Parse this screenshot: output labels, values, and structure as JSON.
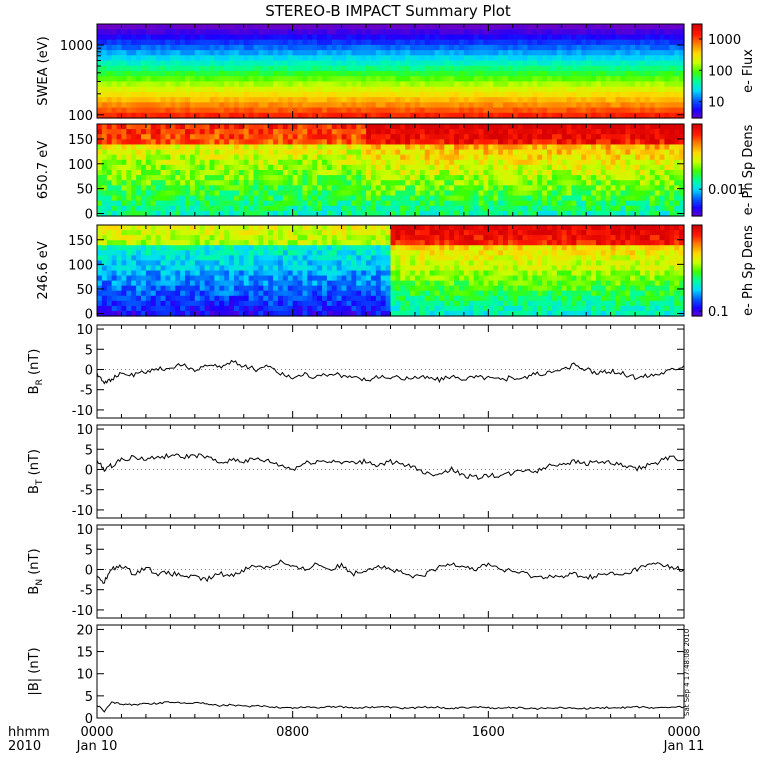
{
  "title": "STEREO-B IMPACT Summary Plot",
  "colors": {
    "frame": "#000000",
    "trace": "#000000",
    "colormap": [
      "#6a00c8",
      "#1a00ff",
      "#0060ff",
      "#00d8ff",
      "#00ff9a",
      "#3cff00",
      "#c8ff00",
      "#ffd800",
      "#ff8000",
      "#ff1a00",
      "#d80000"
    ]
  },
  "x_axis": {
    "row1_label": "hhmm",
    "row2_label": "2010",
    "ticks": [
      {
        "hour": 0,
        "label": "0000",
        "date": "Jan 10"
      },
      {
        "hour": 8,
        "label": "0800",
        "date": ""
      },
      {
        "hour": 16,
        "label": "1600",
        "date": ""
      },
      {
        "hour": 24,
        "label": "0000",
        "date": "Jan 11"
      }
    ],
    "range": [
      0,
      24
    ]
  },
  "timestamp": "Sat Sep  4 17:48:08 2010",
  "chart_data": [
    {
      "type": "heatmap",
      "ylabel": "SWEA (eV)",
      "yscale": "log",
      "ylim": [
        90,
        2000
      ],
      "yticks": [
        {
          "v": 100,
          "label": "100"
        },
        {
          "v": 1000,
          "label": "1000"
        }
      ],
      "colorbar": {
        "label": "e- Flux",
        "scale": "log",
        "range": [
          3,
          3000
        ],
        "ticks": [
          {
            "v": 10,
            "label": "10"
          },
          {
            "v": 100,
            "label": "100"
          },
          {
            "v": 1000,
            "label": "1000"
          }
        ]
      },
      "description_profile": "flux decreases with energy: high (red) near 100 eV, green near 500 eV, blue/purple above 1500 eV"
    },
    {
      "type": "heatmap",
      "ylabel": "650.7 eV",
      "ylim": [
        -5,
        180
      ],
      "yticks": [
        {
          "v": 0,
          "label": "0"
        },
        {
          "v": 50,
          "label": "50"
        },
        {
          "v": 100,
          "label": "100"
        },
        {
          "v": 150,
          "label": "150"
        }
      ],
      "colorbar": {
        "label": "e- Ph Sp Dens",
        "scale": "log",
        "range": [
          0.0002,
          0.05
        ],
        "ticks": [
          {
            "v": 0.001,
            "label": "0.001"
          }
        ]
      }
    },
    {
      "type": "heatmap",
      "ylabel": "246.6 eV",
      "ylim": [
        -5,
        180
      ],
      "yticks": [
        {
          "v": 0,
          "label": "0"
        },
        {
          "v": 50,
          "label": "50"
        },
        {
          "v": 100,
          "label": "100"
        },
        {
          "v": 150,
          "label": "150"
        }
      ],
      "colorbar": {
        "label": "e- Ph Sp Dens",
        "scale": "log",
        "range": [
          0.08,
          5
        ],
        "ticks": [
          {
            "v": 0.1,
            "label": "0.1"
          }
        ]
      }
    },
    {
      "type": "line",
      "ylabel": "B",
      "ylabel_sub": "R",
      "ylabel_unit": "(nT)",
      "ylim": [
        -12,
        11
      ],
      "yticks": [
        {
          "v": -10,
          "label": "-10"
        },
        {
          "v": -5,
          "label": "-5"
        },
        {
          "v": 0,
          "label": "0"
        },
        {
          "v": 5,
          "label": "5"
        },
        {
          "v": 10,
          "label": "10"
        }
      ],
      "x": [
        0,
        0.3,
        0.6,
        1.0,
        1.5,
        2.0,
        2.5,
        3.0,
        3.5,
        4.0,
        4.5,
        5.0,
        5.5,
        6.0,
        6.5,
        7.0,
        7.5,
        8.0,
        8.5,
        9.0,
        9.5,
        10.0,
        10.5,
        11.0,
        11.5,
        12.0,
        12.5,
        13.0,
        13.5,
        14.0,
        14.5,
        15.0,
        15.5,
        16.0,
        16.5,
        17.0,
        17.5,
        18.0,
        18.5,
        19.0,
        19.5,
        20.0,
        20.5,
        21.0,
        21.5,
        22.0,
        22.5,
        23.0,
        23.5,
        24.0
      ],
      "y": [
        -1,
        -3,
        -2.5,
        -1,
        -1.5,
        -0.5,
        0,
        0.5,
        1,
        0,
        1,
        0.5,
        2,
        1,
        0,
        1,
        -1,
        -2,
        -1,
        -2,
        -1,
        -1.5,
        -2,
        -2.5,
        -2,
        -2,
        -2.2,
        -1.8,
        -2,
        -2.5,
        -2,
        -2.2,
        -1.8,
        -2,
        -2.5,
        -2,
        -2,
        -1,
        -1,
        0,
        1,
        0,
        -1,
        -0.5,
        -1,
        -2,
        -1.5,
        -1,
        0,
        1
      ]
    },
    {
      "type": "line",
      "ylabel": "B",
      "ylabel_sub": "T",
      "ylabel_unit": "(nT)",
      "ylim": [
        -12,
        11
      ],
      "yticks": [
        {
          "v": -10,
          "label": "-10"
        },
        {
          "v": -5,
          "label": "-5"
        },
        {
          "v": 0,
          "label": "0"
        },
        {
          "v": 5,
          "label": "5"
        },
        {
          "v": 10,
          "label": "10"
        }
      ],
      "x": [
        0,
        0.3,
        0.6,
        1.0,
        1.5,
        2.0,
        2.5,
        3.0,
        3.5,
        4.0,
        4.5,
        5.0,
        5.5,
        6.0,
        6.5,
        7.0,
        7.5,
        8.0,
        8.5,
        9.0,
        9.5,
        10.0,
        10.5,
        11.0,
        11.5,
        12.0,
        12.5,
        13.0,
        13.5,
        14.0,
        14.5,
        15.0,
        15.5,
        16.0,
        16.5,
        17.0,
        17.5,
        18.0,
        18.5,
        19.0,
        19.5,
        20.0,
        20.5,
        21.0,
        21.5,
        22.0,
        22.5,
        23.0,
        23.5,
        24.0
      ],
      "y": [
        2,
        0,
        1,
        2.5,
        3,
        2.5,
        3,
        3.5,
        3,
        3.5,
        3,
        1.5,
        2.5,
        2,
        2.5,
        2,
        1,
        0,
        1.5,
        2,
        2,
        2,
        1.5,
        2,
        1,
        2,
        1,
        0.5,
        -1,
        -1,
        0,
        -1.5,
        -2,
        -1.5,
        -1.5,
        -1,
        0,
        -0.5,
        1,
        1.5,
        2,
        1.5,
        2,
        1.5,
        1,
        0,
        1,
        2,
        3,
        2.5
      ]
    },
    {
      "type": "line",
      "ylabel": "B",
      "ylabel_sub": "N",
      "ylabel_unit": "(nT)",
      "ylim": [
        -12,
        11
      ],
      "yticks": [
        {
          "v": -10,
          "label": "-10"
        },
        {
          "v": -5,
          "label": "-5"
        },
        {
          "v": 0,
          "label": "0"
        },
        {
          "v": 5,
          "label": "5"
        },
        {
          "v": 10,
          "label": "10"
        }
      ],
      "x": [
        0,
        0.3,
        0.6,
        1.0,
        1.5,
        2.0,
        2.5,
        3.0,
        3.5,
        4.0,
        4.5,
        5.0,
        5.5,
        6.0,
        6.5,
        7.0,
        7.5,
        8.0,
        8.5,
        9.0,
        9.5,
        10.0,
        10.5,
        11.0,
        11.5,
        12.0,
        12.5,
        13.0,
        13.5,
        14.0,
        14.5,
        15.0,
        15.5,
        16.0,
        16.5,
        17.0,
        17.5,
        18.0,
        18.5,
        19.0,
        19.5,
        20.0,
        20.5,
        21.0,
        21.5,
        22.0,
        22.5,
        23.0,
        23.5,
        24.0
      ],
      "y": [
        -2,
        -3,
        0,
        1,
        -1,
        0.5,
        -1,
        -1,
        -1.5,
        -2,
        -2.5,
        -1,
        -1.5,
        0,
        1,
        0.5,
        2,
        0.5,
        0,
        1.5,
        0,
        1,
        -1,
        0,
        1,
        0,
        -1,
        -2,
        -1,
        0.5,
        1.5,
        1,
        0,
        1.5,
        0,
        -0.5,
        -1,
        -2,
        -1.5,
        -2,
        -1,
        -2,
        -1.5,
        -1,
        -1.5,
        0,
        1,
        1.5,
        0.5,
        0
      ]
    },
    {
      "type": "line",
      "ylabel": "|B|",
      "ylabel_unit": "(nT)",
      "ylim": [
        0,
        21
      ],
      "yticks": [
        {
          "v": 0,
          "label": "0"
        },
        {
          "v": 5,
          "label": "5"
        },
        {
          "v": 10,
          "label": "10"
        },
        {
          "v": 15,
          "label": "15"
        },
        {
          "v": 20,
          "label": "20"
        }
      ],
      "x": [
        0,
        0.3,
        0.6,
        1.0,
        1.5,
        2.0,
        2.5,
        3.0,
        3.5,
        4.0,
        4.5,
        5.0,
        5.5,
        6.0,
        6.5,
        7.0,
        7.5,
        8.0,
        8.5,
        9.0,
        9.5,
        10.0,
        10.5,
        11.0,
        11.5,
        12.0,
        12.5,
        13.0,
        13.5,
        14.0,
        14.5,
        15.0,
        15.5,
        16.0,
        16.5,
        17.0,
        17.5,
        18.0,
        18.5,
        19.0,
        19.5,
        20.0,
        20.5,
        21.0,
        21.5,
        22.0,
        22.5,
        23.0,
        23.5,
        24.0
      ],
      "y": [
        3,
        1.5,
        3.5,
        3.2,
        3,
        3.2,
        3.3,
        3.6,
        3.4,
        3.5,
        3.2,
        2.8,
        3,
        2.6,
        2.7,
        2.6,
        2.4,
        2.3,
        2.5,
        2.4,
        2.6,
        2.5,
        2.3,
        2.4,
        2.5,
        2.4,
        2.2,
        2.3,
        2.5,
        2.4,
        2.2,
        2.3,
        2.5,
        2.3,
        2.2,
        2.4,
        2.2,
        2.1,
        2.3,
        2.4,
        2.2,
        2.1,
        2.3,
        2.4,
        2.3,
        2.5,
        2.4,
        2.3,
        2.4,
        2.5
      ]
    }
  ]
}
